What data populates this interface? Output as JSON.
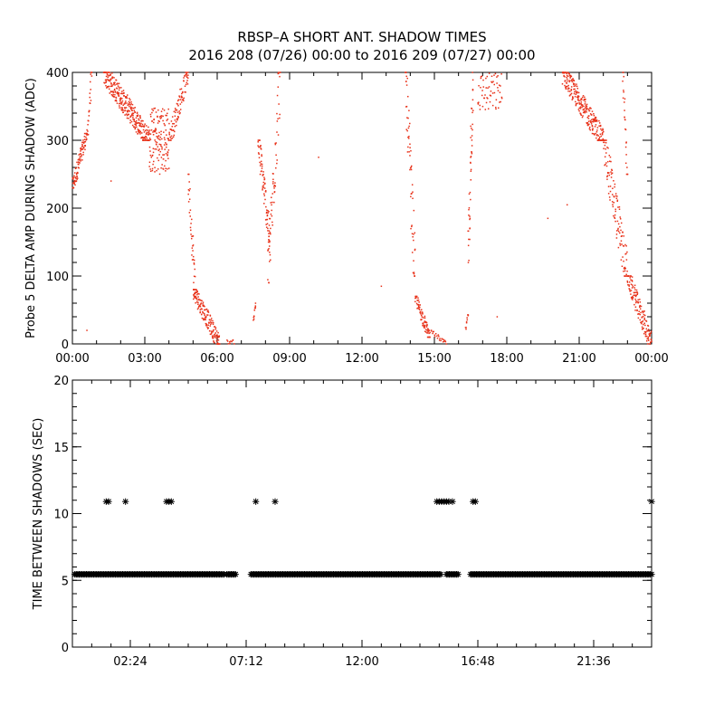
{
  "title_line1": "RBSP–A SHORT ANT. SHADOW TIMES",
  "title_line2": "2016 208 (07/26) 00:00 to 2016 209 (07/27) 00:00",
  "colors": {
    "top_points": "#e8321a",
    "bottom_points": "#000000",
    "axes": "#000000"
  },
  "chart_data": [
    {
      "type": "scatter",
      "ylabel": "Probe 5 DELTA AMP DURING SHADOW (ADC)",
      "xlabel": "",
      "x_units": "hours since 2016-07-26 00:00",
      "xlim": [
        0,
        24
      ],
      "ylim": [
        0,
        400
      ],
      "x_ticks": [
        0,
        3,
        6,
        9,
        12,
        15,
        18,
        21,
        24
      ],
      "x_tick_labels": [
        "00:00",
        "03:00",
        "06:00",
        "09:00",
        "12:00",
        "15:00",
        "18:00",
        "21:00",
        "00:00"
      ],
      "y_ticks": [
        0,
        100,
        200,
        300,
        400
      ],
      "y_tick_labels": [
        "0",
        "100",
        "200",
        "300",
        "400"
      ],
      "grid": false,
      "marker": "dot",
      "segments": [
        {
          "x0": 0.0,
          "x1": 0.6,
          "ymin": 230,
          "ymax": 310,
          "trend": "up",
          "count": 90
        },
        {
          "x0": 0.6,
          "x1": 0.8,
          "ymin": 300,
          "ymax": 400,
          "trend": "up",
          "count": 25
        },
        {
          "x0": 1.3,
          "x1": 3.2,
          "ymin": 300,
          "ymax": 400,
          "trend": "down",
          "count": 320
        },
        {
          "x0": 3.2,
          "x1": 4.0,
          "ymin": 250,
          "ymax": 350,
          "trend": "flat",
          "count": 140
        },
        {
          "x0": 4.0,
          "x1": 4.8,
          "ymin": 300,
          "ymax": 400,
          "trend": "up",
          "count": 90
        },
        {
          "x0": 4.8,
          "x1": 5.1,
          "ymin": 70,
          "ymax": 250,
          "trend": "down",
          "count": 40
        },
        {
          "x0": 5.0,
          "x1": 6.1,
          "ymin": 0,
          "ymax": 80,
          "trend": "down",
          "count": 160
        },
        {
          "x0": 6.4,
          "x1": 6.7,
          "ymin": 0,
          "ymax": 6,
          "trend": "flat",
          "count": 10
        },
        {
          "x0": 7.5,
          "x1": 7.6,
          "ymin": 35,
          "ymax": 60,
          "trend": "up",
          "count": 12
        },
        {
          "x0": 7.7,
          "x1": 8.2,
          "ymin": 150,
          "ymax": 300,
          "trend": "down",
          "count": 80
        },
        {
          "x0": 8.1,
          "x1": 8.6,
          "ymin": 90,
          "ymax": 400,
          "trend": "up",
          "count": 60
        },
        {
          "x0": 13.8,
          "x1": 14.2,
          "ymin": 100,
          "ymax": 400,
          "trend": "down",
          "count": 60
        },
        {
          "x0": 14.2,
          "x1": 14.8,
          "ymin": 10,
          "ymax": 70,
          "trend": "down",
          "count": 80
        },
        {
          "x0": 14.8,
          "x1": 15.5,
          "ymin": 0,
          "ymax": 20,
          "trend": "down",
          "count": 25
        },
        {
          "x0": 16.3,
          "x1": 16.4,
          "ymin": 20,
          "ymax": 45,
          "trend": "up",
          "count": 10
        },
        {
          "x0": 16.4,
          "x1": 16.6,
          "ymin": 120,
          "ymax": 400,
          "trend": "up",
          "count": 45
        },
        {
          "x0": 16.8,
          "x1": 17.8,
          "ymin": 340,
          "ymax": 400,
          "trend": "flat",
          "count": 60
        },
        {
          "x0": 20.3,
          "x1": 22.0,
          "ymin": 300,
          "ymax": 400,
          "trend": "down",
          "count": 260
        },
        {
          "x0": 22.0,
          "x1": 23.0,
          "ymin": 100,
          "ymax": 300,
          "trend": "down",
          "count": 120
        },
        {
          "x0": 23.0,
          "x1": 24.0,
          "ymin": 0,
          "ymax": 100,
          "trend": "down",
          "count": 140
        },
        {
          "x0": 22.8,
          "x1": 23.0,
          "ymin": 250,
          "ymax": 400,
          "trend": "down",
          "count": 25
        }
      ],
      "isolated_points": [
        [
          0.6,
          20
        ],
        [
          1.6,
          240
        ],
        [
          10.2,
          275
        ],
        [
          12.8,
          85
        ],
        [
          17.6,
          40
        ],
        [
          19.7,
          185
        ],
        [
          20.5,
          205
        ]
      ]
    },
    {
      "type": "scatter",
      "ylabel": "TIME BETWEEN SHADOWS (SEC)",
      "xlabel": "",
      "x_units": "hours since 2016-07-26 00:00",
      "xlim": [
        0,
        24
      ],
      "ylim": [
        0,
        20
      ],
      "x_ticks": [
        2.4,
        7.2,
        12.0,
        16.8,
        21.6
      ],
      "x_tick_labels": [
        "02:24",
        "07:12",
        "12:00",
        "16:48",
        "21:36"
      ],
      "y_ticks": [
        0,
        5,
        10,
        15,
        20
      ],
      "y_tick_labels": [
        "0",
        "5",
        "10",
        "15",
        "20"
      ],
      "grid": false,
      "marker": "asterisk",
      "baseline_value": 5.45,
      "baseline_ranges": [
        [
          0.1,
          6.3
        ],
        [
          6.4,
          6.8
        ],
        [
          7.4,
          15.3
        ],
        [
          15.5,
          16.0
        ],
        [
          16.5,
          24.0
        ]
      ],
      "points": [
        [
          1.4,
          10.9
        ],
        [
          1.5,
          10.9
        ],
        [
          2.2,
          10.9
        ],
        [
          3.9,
          10.9
        ],
        [
          4.0,
          10.9
        ],
        [
          4.1,
          10.9
        ],
        [
          7.6,
          10.9
        ],
        [
          8.4,
          10.9
        ],
        [
          15.1,
          10.9
        ],
        [
          15.2,
          10.9
        ],
        [
          15.3,
          10.9
        ],
        [
          15.4,
          10.9
        ],
        [
          15.5,
          10.9
        ],
        [
          15.6,
          10.9
        ],
        [
          15.75,
          10.9
        ],
        [
          16.6,
          10.9
        ],
        [
          16.7,
          10.9
        ],
        [
          24.0,
          10.9
        ]
      ]
    }
  ]
}
